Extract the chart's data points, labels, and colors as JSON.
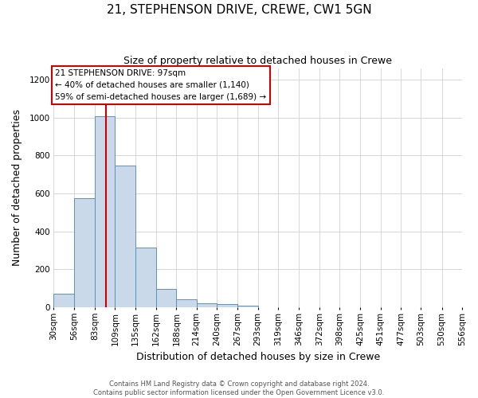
{
  "title": "21, STEPHENSON DRIVE, CREWE, CW1 5GN",
  "subtitle": "Size of property relative to detached houses in Crewe",
  "xlabel": "Distribution of detached houses by size in Crewe",
  "ylabel": "Number of detached properties",
  "bar_heights": [
    70,
    575,
    1005,
    745,
    315,
    95,
    40,
    20,
    15,
    10,
    0,
    0,
    0,
    0,
    0,
    0,
    0,
    0,
    0,
    0
  ],
  "bin_edges": [
    30,
    56,
    83,
    109,
    135,
    162,
    188,
    214,
    240,
    267,
    293,
    319,
    346,
    372,
    398,
    425,
    451,
    477,
    503,
    530,
    556
  ],
  "bin_labels": [
    "30sqm",
    "56sqm",
    "83sqm",
    "109sqm",
    "135sqm",
    "162sqm",
    "188sqm",
    "214sqm",
    "240sqm",
    "267sqm",
    "293sqm",
    "319sqm",
    "346sqm",
    "372sqm",
    "398sqm",
    "425sqm",
    "451sqm",
    "477sqm",
    "503sqm",
    "530sqm",
    "556sqm"
  ],
  "bar_color": "#c9d9ea",
  "bar_edge_color": "#6090b8",
  "vline_x": 97,
  "vline_color": "#cc0000",
  "annotation_text": "21 STEPHENSON DRIVE: 97sqm\n← 40% of detached houses are smaller (1,140)\n59% of semi-detached houses are larger (1,689) →",
  "annotation_box_color": "#ffffff",
  "annotation_box_edge_color": "#cc0000",
  "ylim": [
    0,
    1260
  ],
  "yticks": [
    0,
    200,
    400,
    600,
    800,
    1000,
    1200
  ],
  "footer_line1": "Contains HM Land Registry data © Crown copyright and database right 2024.",
  "footer_line2": "Contains public sector information licensed under the Open Government Licence v3.0.",
  "background_color": "#ffffff",
  "grid_color": "#d0d0d0",
  "title_fontsize": 11,
  "subtitle_fontsize": 9,
  "xlabel_fontsize": 9,
  "ylabel_fontsize": 9,
  "tick_fontsize": 7.5,
  "footer_fontsize": 6.0,
  "annotation_fontsize": 7.5
}
